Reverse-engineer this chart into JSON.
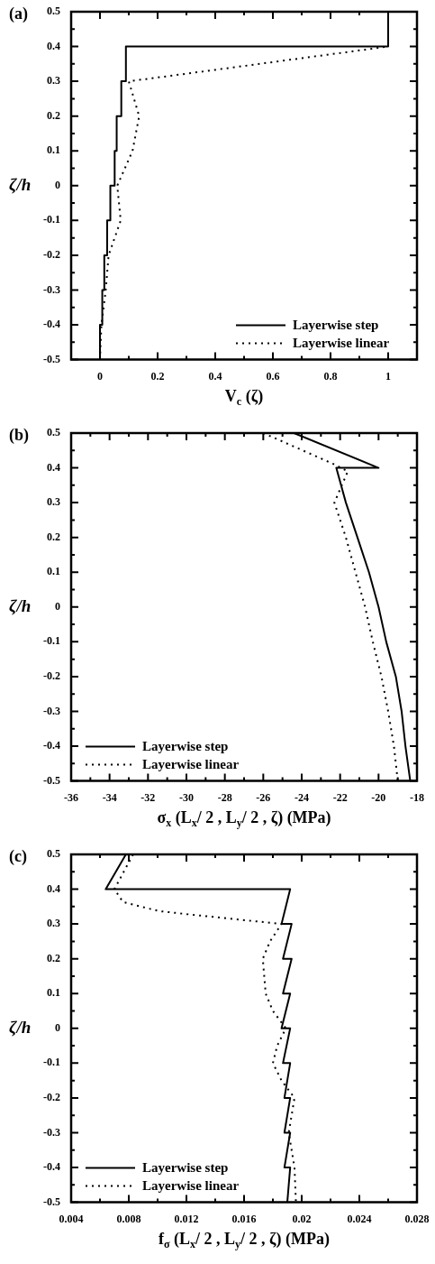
{
  "chart_data": [
    {
      "type": "line",
      "title": "(a)",
      "xlabel": "V$_{c}$ (ζ)",
      "ylabel": "ζ/h",
      "legend": "bottom right",
      "xlim": [
        -0.1,
        1.1
      ],
      "xticks": [
        0,
        {
          "value": 0.1,
          "label": null
        },
        0.2,
        {
          "value": 0.3,
          "label": null
        },
        0.4,
        {
          "value": 0.5,
          "label": null
        },
        0.6,
        {
          "value": 0.7,
          "label": null
        },
        0.8,
        {
          "value": 0.9,
          "label": null
        },
        1
      ],
      "ylim": [
        -0.5,
        0.5
      ],
      "yticks": [
        -0.5,
        {
          "value": -0.45,
          "label": null
        },
        -0.4,
        {
          "value": -0.35,
          "label": null
        },
        -0.3,
        {
          "value": -0.25,
          "label": null
        },
        -0.2,
        {
          "value": -0.15,
          "label": null
        },
        -0.1,
        {
          "value": -0.05,
          "label": null
        },
        0,
        {
          "value": 0.05,
          "label": null
        },
        0.1,
        {
          "value": 0.15,
          "label": null
        },
        0.2,
        {
          "value": 0.25,
          "label": null
        },
        0.3,
        {
          "value": 0.35,
          "label": null
        },
        0.4,
        {
          "value": 0.45,
          "label": null
        },
        0.5
      ],
      "series": [
        {
          "name": "Layerwise step",
          "color": "#000000",
          "line_style": "solid",
          "x": [
            0,
            0,
            0.008,
            0.008,
            0.015,
            0.015,
            0.025,
            0.025,
            0.036,
            0.036,
            0.051,
            0.051,
            0.058,
            0.058,
            0.074,
            0.074,
            0.09,
            0.09,
            1.0,
            1.0
          ],
          "values": [
            -0.5,
            -0.4,
            -0.4,
            -0.3,
            -0.3,
            -0.2,
            -0.2,
            -0.1,
            -0.1,
            0,
            0,
            0.1,
            0.1,
            0.2,
            0.2,
            0.3,
            0.3,
            0.4,
            0.4,
            0.5
          ]
        },
        {
          "name": "Layerwise linear",
          "color": "#000000",
          "line_style": "dotted",
          "x": [
            0,
            0.005,
            0.02,
            0.03,
            0.072,
            0.06,
            0.113,
            0.136,
            0.1,
            0.4,
            1.0
          ],
          "values": [
            -0.5,
            -0.4,
            -0.3,
            -0.2,
            -0.1,
            0,
            0.1,
            0.2,
            0.3,
            0.333,
            0.4
          ]
        }
      ]
    },
    {
      "type": "line",
      "title": "(b)",
      "xlabel": "σ$_{x}$ (L$_{x}$/ 2 , L$_{y}$/ 2 , ζ) (MPa)",
      "ylabel": "ζ/h",
      "legend": "bottom left",
      "xlim": [
        -36,
        -18
      ],
      "xticks": [
        -36,
        {
          "value": -35,
          "label": null
        },
        -34,
        {
          "value": -33,
          "label": null
        },
        -32,
        {
          "value": -31,
          "label": null
        },
        -30,
        {
          "value": -29,
          "label": null
        },
        -28,
        {
          "value": -27,
          "label": null
        },
        -26,
        {
          "value": -25,
          "label": null
        },
        -24,
        {
          "value": -23,
          "label": null
        },
        -22,
        {
          "value": -21,
          "label": null
        },
        -20,
        {
          "value": -19,
          "label": null
        },
        -18
      ],
      "ylim": [
        -0.5,
        0.5
      ],
      "yticks": [
        -0.5,
        {
          "value": -0.45,
          "label": null
        },
        -0.4,
        {
          "value": -0.35,
          "label": null
        },
        -0.3,
        {
          "value": -0.25,
          "label": null
        },
        -0.2,
        {
          "value": -0.15,
          "label": null
        },
        -0.1,
        {
          "value": -0.05,
          "label": null
        },
        0,
        {
          "value": 0.05,
          "label": null
        },
        0.1,
        {
          "value": 0.15,
          "label": null
        },
        0.2,
        {
          "value": 0.25,
          "label": null
        },
        0.3,
        {
          "value": 0.35,
          "label": null
        },
        0.4,
        {
          "value": 0.45,
          "label": null
        },
        0.5
      ],
      "series": [
        {
          "name": "Layerwise step",
          "color": "#000000",
          "line_style": "solid",
          "x": [
            -24.4,
            -20.0,
            -22.2,
            -21.7,
            -21.1,
            -20.5,
            -20.0,
            -19.6,
            -19.1,
            -18.8,
            -18.6,
            -18.35
          ],
          "values": [
            0.5,
            0.4,
            0.4,
            0.3,
            0.2,
            0.1,
            0,
            -0.1,
            -0.2,
            -0.3,
            -0.4,
            -0.5
          ]
        },
        {
          "name": "Layerwise linear",
          "color": "#000000",
          "line_style": "dotted",
          "x": [
            -26.0,
            -22.3,
            -21.6,
            -22.3,
            -21.7,
            -21.2,
            -20.7,
            -20.3,
            -19.85,
            -19.5,
            -19.2,
            -19.0
          ],
          "values": [
            0.5,
            0.41,
            0.39,
            0.3,
            0.2,
            0.1,
            0,
            -0.1,
            -0.2,
            -0.3,
            -0.4,
            -0.5
          ]
        }
      ]
    },
    {
      "type": "line",
      "title": "(c)",
      "xlabel": "f$_{σ}$ (L$_{x}$/ 2 , L$_{y}$/ 2 , ζ) (MPa)",
      "ylabel": "ζ/h",
      "legend": "bottom left",
      "xlim": [
        0.004,
        0.028
      ],
      "xticks": [
        0.004,
        {
          "value": 0.006,
          "label": null
        },
        0.008,
        {
          "value": 0.01,
          "label": null
        },
        0.012,
        {
          "value": 0.014,
          "label": null
        },
        0.016,
        {
          "value": 0.018,
          "label": null
        },
        0.02,
        {
          "value": 0.022,
          "label": null
        },
        0.024,
        {
          "value": 0.026,
          "label": null
        },
        0.028
      ],
      "ylim": [
        -0.5,
        0.5
      ],
      "yticks": [
        -0.5,
        {
          "value": -0.45,
          "label": null
        },
        -0.4,
        {
          "value": -0.35,
          "label": null
        },
        -0.3,
        {
          "value": -0.25,
          "label": null
        },
        -0.2,
        {
          "value": -0.15,
          "label": null
        },
        -0.1,
        {
          "value": -0.05,
          "label": null
        },
        0,
        {
          "value": 0.05,
          "label": null
        },
        0.1,
        {
          "value": 0.15,
          "label": null
        },
        0.2,
        {
          "value": 0.25,
          "label": null
        },
        0.3,
        {
          "value": 0.35,
          "label": null
        },
        0.4,
        {
          "value": 0.45,
          "label": null
        },
        0.5
      ],
      "series": [
        {
          "name": "Layerwise step",
          "color": "#000000",
          "line_style": "solid",
          "x": [
            0.0078,
            0.0064,
            0.0192,
            0.0186,
            0.0193,
            0.0187,
            0.0193,
            0.0187,
            0.0192,
            0.0186,
            0.0192,
            0.0187,
            0.0192,
            0.0188,
            0.0192,
            0.0188,
            0.0192,
            0.0188,
            0.0192,
            0.019
          ],
          "values": [
            0.5,
            0.4,
            0.4,
            0.3,
            0.3,
            0.2,
            0.2,
            0.1,
            0.1,
            0,
            0,
            -0.1,
            -0.1,
            -0.2,
            -0.2,
            -0.3,
            -0.3,
            -0.4,
            -0.4,
            -0.5
          ]
        },
        {
          "name": "Layerwise linear",
          "color": "#000000",
          "line_style": "dotted",
          "x": [
            0.0083,
            0.007,
            0.0076,
            0.0101,
            0.013,
            0.0186,
            0.0178,
            0.0173,
            0.0175,
            0.018,
            0.0189,
            0.0183,
            0.018,
            0.0186,
            0.0195,
            0.0191,
            0.0195,
            0.0196
          ],
          "values": [
            0.5,
            0.4,
            0.363,
            0.337,
            0.324,
            0.3,
            0.25,
            0.2,
            0.1,
            0.05,
            0,
            -0.05,
            -0.1,
            -0.15,
            -0.2,
            -0.3,
            -0.4,
            -0.5
          ]
        }
      ]
    }
  ]
}
